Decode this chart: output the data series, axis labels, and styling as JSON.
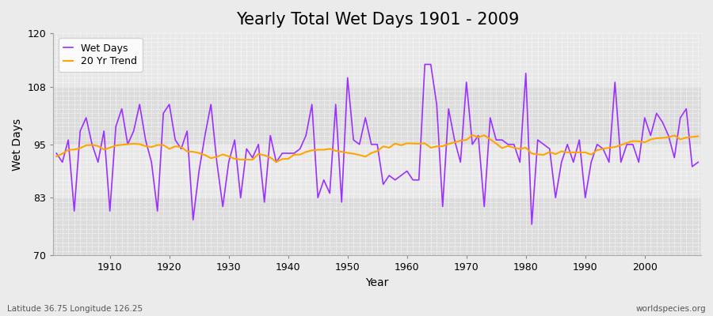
{
  "title": "Yearly Total Wet Days 1901 - 2009",
  "xlabel": "Year",
  "ylabel": "Wet Days",
  "lat_lon_label": "Latitude 36.75 Longitude 126.25",
  "source_label": "worldspecies.org",
  "ylim": [
    70,
    120
  ],
  "yticks": [
    70,
    83,
    95,
    108,
    120
  ],
  "xticks": [
    1910,
    1920,
    1930,
    1940,
    1950,
    1960,
    1970,
    1980,
    1990,
    2000
  ],
  "years": [
    1901,
    1902,
    1903,
    1904,
    1905,
    1906,
    1907,
    1908,
    1909,
    1910,
    1911,
    1912,
    1913,
    1914,
    1915,
    1916,
    1917,
    1918,
    1919,
    1920,
    1921,
    1922,
    1923,
    1924,
    1925,
    1926,
    1927,
    1928,
    1929,
    1930,
    1931,
    1932,
    1933,
    1934,
    1935,
    1936,
    1937,
    1938,
    1939,
    1940,
    1941,
    1942,
    1943,
    1944,
    1945,
    1946,
    1947,
    1948,
    1949,
    1950,
    1951,
    1952,
    1953,
    1954,
    1955,
    1956,
    1957,
    1958,
    1959,
    1960,
    1961,
    1962,
    1963,
    1964,
    1965,
    1966,
    1967,
    1968,
    1969,
    1970,
    1971,
    1972,
    1973,
    1974,
    1975,
    1976,
    1977,
    1978,
    1979,
    1980,
    1981,
    1982,
    1983,
    1984,
    1985,
    1986,
    1987,
    1988,
    1989,
    1990,
    1991,
    1992,
    1993,
    1994,
    1995,
    1996,
    1997,
    1998,
    1999,
    2000,
    2001,
    2002,
    2003,
    2004,
    2005,
    2006,
    2007,
    2008,
    2009
  ],
  "wet_days": [
    93,
    91,
    96,
    80,
    98,
    101,
    95,
    91,
    98,
    80,
    99,
    103,
    95,
    98,
    104,
    96,
    91,
    80,
    102,
    104,
    96,
    94,
    98,
    78,
    89,
    97,
    104,
    91,
    81,
    91,
    96,
    83,
    94,
    92,
    95,
    82,
    97,
    91,
    93,
    93,
    93,
    94,
    97,
    104,
    83,
    87,
    84,
    104,
    82,
    110,
    96,
    95,
    101,
    95,
    95,
    86,
    88,
    87,
    88,
    89,
    87,
    87,
    113,
    113,
    104,
    81,
    103,
    96,
    91,
    109,
    95,
    97,
    81,
    101,
    96,
    96,
    95,
    95,
    91,
    111,
    77,
    96,
    95,
    94,
    83,
    91,
    95,
    91,
    96,
    83,
    91,
    95,
    94,
    91,
    109,
    91,
    95,
    95,
    91,
    101,
    97,
    102,
    100,
    97,
    92,
    101,
    103,
    90,
    91
  ],
  "wet_days_color": "#9B30FF",
  "trend_color": "#FFA500",
  "background_color": "#EBEBEB",
  "plot_bg_color_light": "#E8E8E8",
  "plot_bg_color_dark": "#DCDCDC",
  "grid_color": "#FFFFFF",
  "title_fontsize": 15,
  "axis_label_fontsize": 10,
  "tick_fontsize": 9,
  "legend_fontsize": 9
}
